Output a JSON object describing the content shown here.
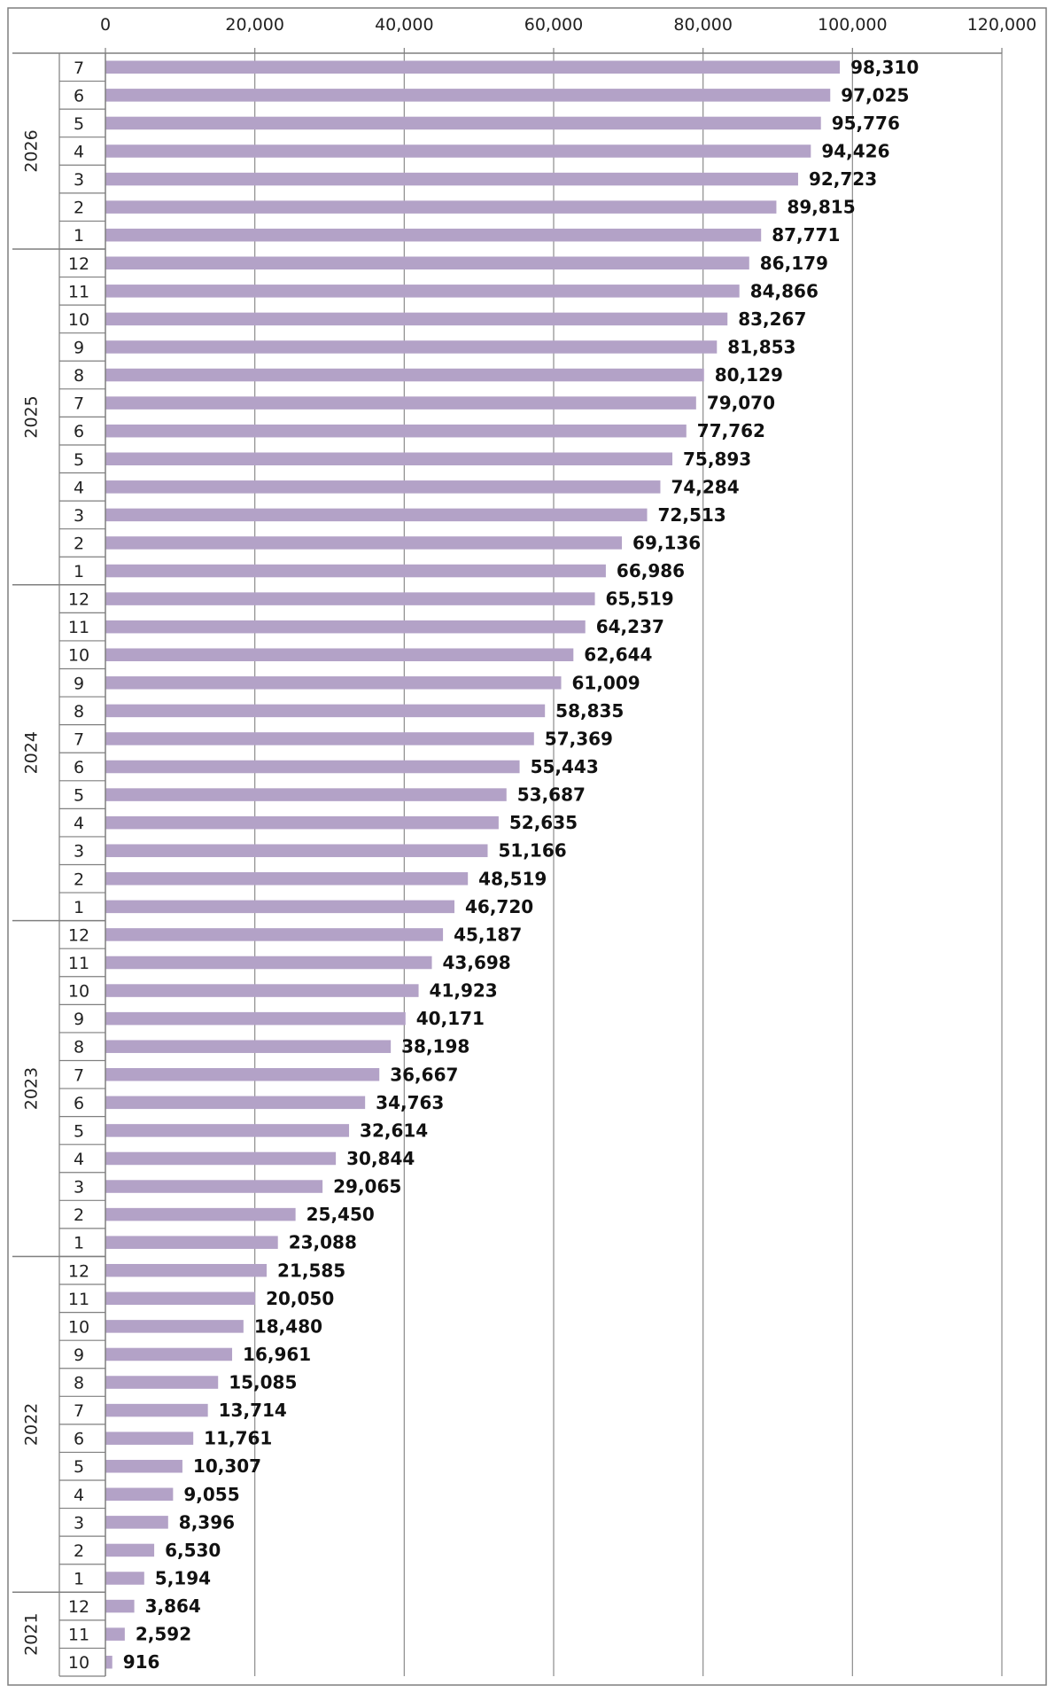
{
  "chart_data": {
    "type": "bar",
    "orientation": "horizontal",
    "title": "",
    "xlabel": "",
    "ylabel": "",
    "xlim": [
      0,
      120000
    ],
    "x_ticks": [
      0,
      20000,
      40000,
      60000,
      80000,
      100000,
      120000
    ],
    "x_tick_labels": [
      "0",
      "20,000",
      "40,000",
      "60,000",
      "80,000",
      "100,000",
      "120,000"
    ],
    "x_axis_position": "top",
    "grid": "vertical",
    "legend": "none",
    "bar_color": "#b3a2c7",
    "order": "top-to-bottom",
    "groups": [
      {
        "year": "2026",
        "months": [
          "7",
          "6",
          "5",
          "4",
          "3",
          "2",
          "1"
        ],
        "values": [
          98310,
          97025,
          95776,
          94426,
          92723,
          89815,
          87771
        ],
        "labels": [
          "98,310",
          "97,025",
          "95,776",
          "94,426",
          "92,723",
          "89,815",
          "87,771"
        ]
      },
      {
        "year": "2025",
        "months": [
          "12",
          "11",
          "10",
          "9",
          "8",
          "7",
          "6",
          "5",
          "4",
          "3",
          "2",
          "1"
        ],
        "values": [
          86179,
          84866,
          83267,
          81853,
          80129,
          79070,
          77762,
          75893,
          74284,
          72513,
          69136,
          66986
        ],
        "labels": [
          "86,179",
          "84,866",
          "83,267",
          "81,853",
          "80,129",
          "79,070",
          "77,762",
          "75,893",
          "74,284",
          "72,513",
          "69,136",
          "66,986"
        ]
      },
      {
        "year": "2024",
        "months": [
          "12",
          "11",
          "10",
          "9",
          "8",
          "7",
          "6",
          "5",
          "4",
          "3",
          "2",
          "1"
        ],
        "values": [
          65519,
          64237,
          62644,
          61009,
          58835,
          57369,
          55443,
          53687,
          52635,
          51166,
          48519,
          46720
        ],
        "labels": [
          "65,519",
          "64,237",
          "62,644",
          "61,009",
          "58,835",
          "57,369",
          "55,443",
          "53,687",
          "52,635",
          "51,166",
          "48,519",
          "46,720"
        ]
      },
      {
        "year": "2023",
        "months": [
          "12",
          "11",
          "10",
          "9",
          "8",
          "7",
          "6",
          "5",
          "4",
          "3",
          "2",
          "1"
        ],
        "values": [
          45187,
          43698,
          41923,
          40171,
          38198,
          36667,
          34763,
          32614,
          30844,
          29065,
          25450,
          23088
        ],
        "labels": [
          "45,187",
          "43,698",
          "41,923",
          "40,171",
          "38,198",
          "36,667",
          "34,763",
          "32,614",
          "30,844",
          "29,065",
          "25,450",
          "23,088"
        ]
      },
      {
        "year": "2022",
        "months": [
          "12",
          "11",
          "10",
          "9",
          "8",
          "7",
          "6",
          "5",
          "4",
          "3",
          "2",
          "1"
        ],
        "values": [
          21585,
          20050,
          18480,
          16961,
          15085,
          13714,
          11761,
          10307,
          9055,
          8396,
          6530,
          5194
        ],
        "labels": [
          "21,585",
          "20,050",
          "18,480",
          "16,961",
          "15,085",
          "13,714",
          "11,761",
          "10,307",
          "9,055",
          "8,396",
          "6,530",
          "5,194"
        ]
      },
      {
        "year": "2021",
        "months": [
          "12",
          "11",
          "10"
        ],
        "values": [
          3864,
          2592,
          916
        ],
        "labels": [
          "3,864",
          "2,592",
          "916"
        ]
      }
    ]
  }
}
